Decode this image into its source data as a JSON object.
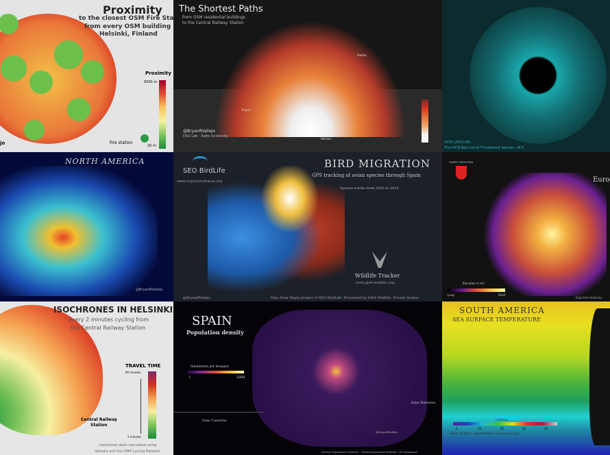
{
  "tiles": {
    "proximity": {
      "title": "Proximity",
      "subtitle1": "to the closest OSM Fire Station",
      "subtitle2": "from every OSM building in",
      "subtitle3": "Helsinki, Finland",
      "legend_title": "Proximity",
      "legend_max": "5000 m",
      "legend_min": "20 m",
      "legend_item": "Fire station",
      "author": "jo"
    },
    "shortest": {
      "title": "The Shortest Paths",
      "subtitle1": "from OSM residential buildings",
      "subtitle2": "to the Central Railway Station",
      "author": "@BryanRVallejo",
      "org": "DIGI Lab - Aalto University",
      "label_espoo": "Espoo",
      "label_vantaa": "Vantaa",
      "label_helsinki": "Helsinki"
    },
    "iucn": {
      "source1": "IUCN (2022-08).",
      "source2": "The IUCN Red List of Threatened Species. v6.5"
    },
    "north_america": {
      "title": "NORTH AMERICA",
      "author": "@BryanRVallejo"
    },
    "bird": {
      "logo": "SEO BirdLife",
      "site": "www.migraciondeaves.org",
      "title": "BIRD MIGRATION",
      "subtitle": "GPS tracking of avian species through Spain",
      "years": "Species tracks from 2003 to 2023",
      "brand": "Wildlife Tracker",
      "brand_site": "www.gis4-wildlife.com",
      "author": "@BryanRVallejo",
      "credit": "Data from Migra project of SEO BirdLife. Processed by GIS4 Wildlife. Private license"
    },
    "tartu": {
      "place": "TARTU-ESTONIA",
      "title": "Europ",
      "legend_title": "Elevation in (m)",
      "legend_low": "Long",
      "legend_high": "Short",
      "credit": "Data from Estonian"
    },
    "isochrones": {
      "title": "ISOCHRONES IN HELSINKI",
      "subtitle1": "every 2 minutes cycling from",
      "subtitle2": "the Central Railway Station",
      "legend_title": "TRAVEL TIME",
      "legend_max": "90 minutes",
      "legend_min": "2 minutes",
      "station": "Central Railway",
      "station2": "Station",
      "note1": "Isochrones were calculated using",
      "note2": "Valhalla and the OSM Cycling Network"
    },
    "spain": {
      "title": "SPAIN",
      "subtitle": "Population density",
      "legend_title": "Inhabitants per hexagon",
      "legend_min": "1",
      "legend_max": "32804",
      "canarias": "Islas Canarias",
      "baleares": "Islas Baleares",
      "author": "@BryanRVallejo",
      "credit": "Kontur Population Dataset - Global population density - H3 hexagons"
    },
    "south_america": {
      "title": "SOUTH AMERICA",
      "subtitle": "SEA SURFACE TEMPERATURE",
      "legend_title": "Celsius",
      "ticks": [
        "0",
        "10",
        "20",
        "30",
        "40"
      ],
      "credit": "NASA OB.DAAC - Aqua MODIS on Sea Surface (L3)"
    }
  },
  "colors": {
    "fire_red": "#d7301f",
    "green": "#4caf50",
    "dark": "#1a1a1a"
  }
}
